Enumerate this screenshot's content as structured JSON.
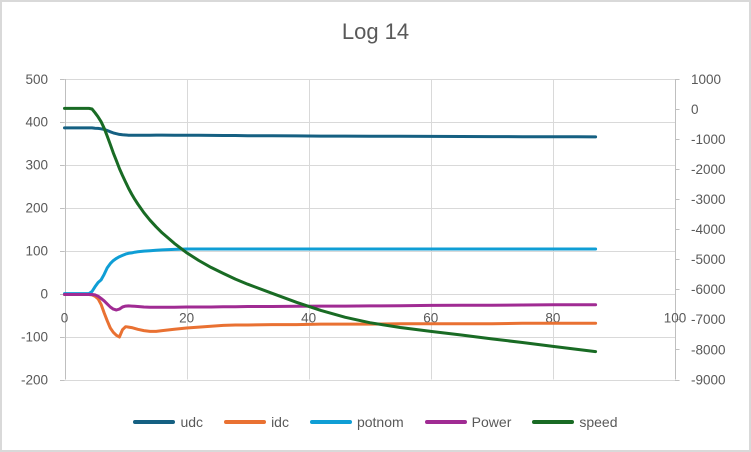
{
  "title": "Log 14",
  "colors": {
    "text": "#595959",
    "gridline": "#D9D9D9",
    "axis_line": "#BFBFBF",
    "border": "#D9D9D9",
    "background": "#FFFFFF"
  },
  "chart_data": {
    "type": "line",
    "title": "Log 14",
    "grid": true,
    "legend_position": "bottom",
    "x_axis": {
      "min": 0,
      "max": 100,
      "ticks": [
        0,
        20,
        40,
        60,
        80,
        100
      ]
    },
    "y_axis_left": {
      "min": -200,
      "max": 500,
      "ticks": [
        500,
        400,
        300,
        200,
        100,
        0,
        -100,
        -200
      ]
    },
    "y_axis_right": {
      "min": -9000,
      "max": 1000,
      "ticks": [
        1000,
        0,
        -1000,
        -2000,
        -3000,
        -4000,
        -5000,
        -6000,
        -7000,
        -8000,
        -9000
      ]
    },
    "x": [
      0,
      2,
      4,
      4.5,
      5,
      5.5,
      6,
      6.5,
      7,
      7.5,
      8,
      8.5,
      9,
      9.5,
      10,
      10.5,
      11,
      11.5,
      12,
      13,
      14,
      15,
      16,
      18,
      20,
      22,
      24,
      26,
      28,
      30,
      34,
      38,
      42,
      46,
      50,
      55,
      60,
      65,
      70,
      75,
      80,
      84,
      87
    ],
    "series": [
      {
        "name": "udc",
        "axis": "left",
        "color": "#156082",
        "y": [
          386,
          386,
          386,
          386,
          385.5,
          385,
          384,
          382.5,
          380,
          377,
          374.5,
          372.5,
          371,
          370,
          369.5,
          369,
          369,
          369,
          369,
          369,
          369.2,
          369.3,
          369.3,
          369.2,
          369,
          368.8,
          368.6,
          368.5,
          368.3,
          368,
          367.7,
          367.4,
          367.1,
          366.9,
          366.7,
          366.5,
          366.3,
          366,
          365.8,
          365.6,
          365.4,
          365.3,
          365.2
        ]
      },
      {
        "name": "idc",
        "axis": "left",
        "color": "#E97132",
        "y": [
          -2,
          -2,
          -2,
          -3,
          -6,
          -12,
          -25,
          -45,
          -63,
          -80,
          -90,
          -97,
          -101,
          -84,
          -77,
          -78,
          -79,
          -81,
          -83,
          -86,
          -88,
          -88,
          -86,
          -83,
          -80,
          -78,
          -76,
          -74,
          -73,
          -73,
          -72,
          -72,
          -71,
          -71,
          -71,
          -70,
          -70,
          -70,
          -70,
          -69,
          -69,
          -69,
          -69
        ]
      },
      {
        "name": "potnom",
        "axis": "left",
        "color": "#0F9ED5",
        "y": [
          0,
          0,
          0,
          5,
          16,
          26,
          32,
          45,
          60,
          70,
          77,
          82,
          86,
          89,
          92,
          94,
          95,
          96.5,
          97.5,
          99,
          100,
          101,
          102,
          103,
          104,
          104,
          104,
          104,
          104,
          104,
          104,
          104,
          104,
          104,
          104,
          104,
          104,
          104,
          104,
          104,
          104,
          104,
          104
        ]
      },
      {
        "name": "Power",
        "axis": "left",
        "color": "#A02B93",
        "y": [
          -2,
          -2,
          -2,
          -2,
          -3,
          -6,
          -11,
          -17,
          -24,
          -31,
          -36,
          -38,
          -36,
          -31,
          -29,
          -28.5,
          -29,
          -29.5,
          -30,
          -31,
          -31.5,
          -31.5,
          -31.5,
          -31.5,
          -31,
          -31,
          -31,
          -30.5,
          -30.5,
          -30,
          -30,
          -29.5,
          -29,
          -29,
          -28.5,
          -28,
          -27.5,
          -27,
          -27,
          -26.5,
          -26,
          -26,
          -26
        ]
      },
      {
        "name": "speed",
        "axis": "right",
        "color": "#196B24",
        "y": [
          20,
          20,
          20,
          0,
          -120,
          -260,
          -420,
          -640,
          -900,
          -1180,
          -1460,
          -1720,
          -1980,
          -2210,
          -2430,
          -2640,
          -2830,
          -3000,
          -3160,
          -3450,
          -3700,
          -3920,
          -4120,
          -4470,
          -4780,
          -5040,
          -5270,
          -5470,
          -5660,
          -5830,
          -6130,
          -6430,
          -6700,
          -6930,
          -7110,
          -7270,
          -7400,
          -7520,
          -7650,
          -7770,
          -7900,
          -8000,
          -8070
        ]
      }
    ]
  },
  "legend": {
    "items": [
      {
        "label": "udc"
      },
      {
        "label": "idc"
      },
      {
        "label": "potnom"
      },
      {
        "label": "Power"
      },
      {
        "label": "speed"
      }
    ]
  }
}
